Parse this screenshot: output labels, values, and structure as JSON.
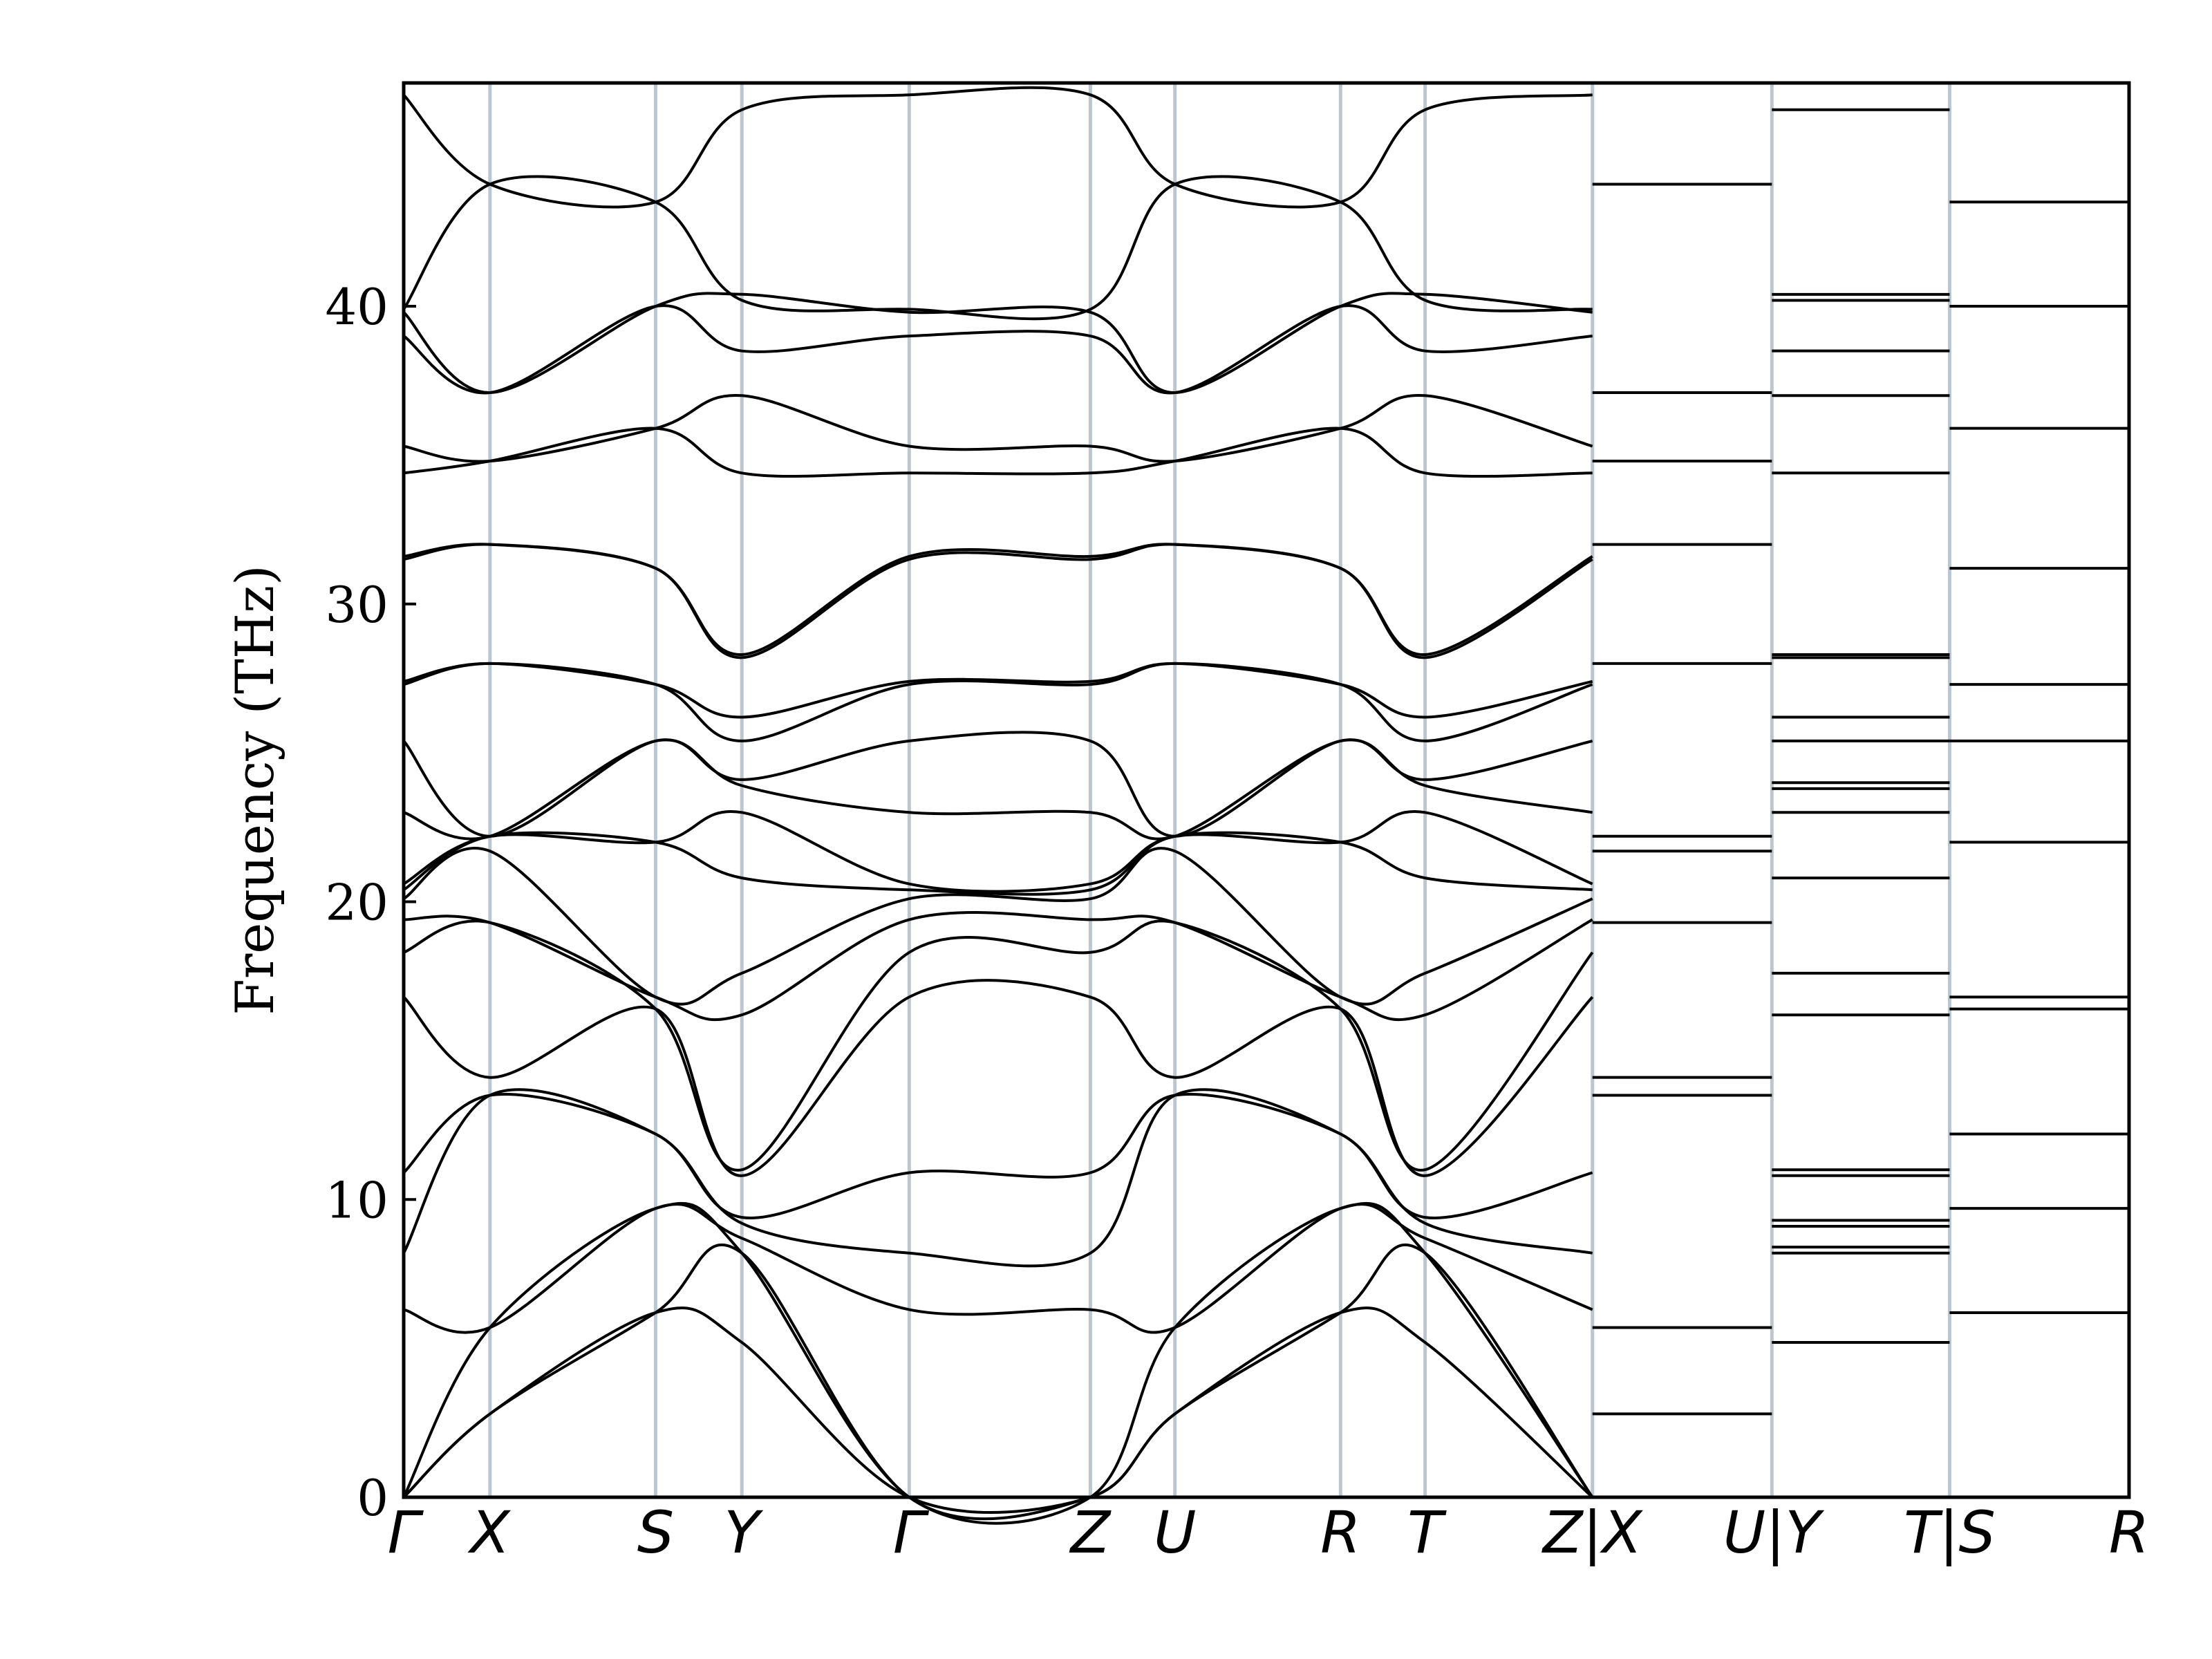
{
  "chart_data": {
    "type": "line",
    "title": "",
    "xlabel": "",
    "ylabel": "Frequency (THz)",
    "ylim": [
      0,
      47.5
    ],
    "yticks": [
      0,
      10,
      20,
      30,
      40
    ],
    "grid": false,
    "legend": "none",
    "colors": {
      "bands": "#000000",
      "kpath_lines": "#bcc6cf",
      "frame": "#000000",
      "background": "#ffffff"
    },
    "kpath": {
      "labels": [
        "Γ",
        "X",
        "S",
        "Y",
        "Γ",
        "Z",
        "U",
        "R",
        "T",
        "Z|X",
        "U|Y",
        "T|S",
        "R"
      ],
      "positions": [
        0,
        0.05,
        0.146,
        0.196,
        0.293,
        0.398,
        0.447,
        0.543,
        0.592,
        0.689,
        0.793,
        0.896,
        1.0
      ]
    },
    "segments": [
      {
        "path": "Γ-X-S-Y-Γ-Z-U-R-T-Z",
        "x_range": [
          0,
          0.689
        ],
        "bands": [
          {
            "name": "b1",
            "values": [
              0,
              2.8,
              6.2,
              5.2,
              0,
              0,
              2.8,
              6.2,
              5.2,
              0
            ]
          },
          {
            "name": "b2",
            "values": [
              0,
              2.8,
              6.2,
              8.2,
              0,
              0,
              2.8,
              6.2,
              8.2,
              0
            ]
          },
          {
            "name": "b3",
            "values": [
              0,
              5.7,
              9.7,
              8.2,
              0,
              0,
              5.7,
              9.7,
              8.2,
              0
            ]
          },
          {
            "name": "b4",
            "values": [
              6.3,
              5.7,
              9.7,
              8.7,
              6.3,
              6.3,
              5.7,
              9.7,
              8.7,
              6.3
            ]
          },
          {
            "name": "b5",
            "values": [
              8.2,
              13.5,
              12.2,
              9.2,
              8.2,
              8.2,
              13.5,
              12.2,
              9.2,
              8.2
            ]
          },
          {
            "name": "b6",
            "values": [
              10.9,
              13.5,
              12.2,
              9.4,
              10.9,
              10.9,
              13.5,
              12.2,
              9.4,
              10.9
            ]
          },
          {
            "name": "b7",
            "values": [
              16.8,
              14.1,
              16.4,
              10.8,
              16.8,
              16.8,
              14.1,
              16.4,
              10.8,
              16.8
            ]
          },
          {
            "name": "b8",
            "values": [
              18.3,
              19.3,
              16.4,
              11.0,
              18.3,
              18.3,
              19.3,
              16.4,
              11.0,
              18.3
            ]
          },
          {
            "name": "b9",
            "values": [
              19.4,
              19.3,
              16.8,
              16.2,
              19.4,
              19.4,
              19.3,
              16.8,
              16.2,
              19.4
            ]
          },
          {
            "name": "b10",
            "values": [
              20.1,
              21.7,
              16.8,
              17.6,
              20.1,
              20.1,
              21.7,
              16.8,
              17.6,
              20.1
            ]
          },
          {
            "name": "b11",
            "values": [
              20.4,
              22.2,
              22.0,
              20.8,
              20.4,
              20.4,
              22.2,
              22.0,
              20.8,
              20.4
            ]
          },
          {
            "name": "b12",
            "values": [
              20.6,
              22.2,
              22.0,
              23.0,
              20.6,
              20.6,
              22.2,
              22.0,
              23.0,
              20.6
            ]
          },
          {
            "name": "b13",
            "values": [
              23.0,
              22.2,
              25.4,
              23.9,
              23.0,
              23.0,
              22.2,
              25.4,
              23.9,
              23.0
            ]
          },
          {
            "name": "b14",
            "values": [
              25.4,
              22.2,
              25.4,
              24.1,
              25.4,
              25.4,
              22.2,
              25.4,
              24.1,
              25.4
            ]
          },
          {
            "name": "b15",
            "values": [
              27.3,
              28.0,
              27.3,
              25.4,
              27.3,
              27.3,
              28.0,
              27.3,
              25.4,
              27.3
            ]
          },
          {
            "name": "b16",
            "values": [
              27.4,
              28.0,
              27.3,
              26.2,
              27.4,
              27.4,
              28.0,
              27.3,
              26.2,
              27.4
            ]
          },
          {
            "name": "b17",
            "values": [
              31.5,
              32.0,
              31.2,
              28.2,
              31.5,
              31.5,
              32.0,
              31.2,
              28.2,
              31.5
            ]
          },
          {
            "name": "b18",
            "values": [
              31.6,
              32.0,
              31.2,
              28.3,
              31.6,
              31.6,
              32.0,
              31.2,
              28.3,
              31.6
            ]
          },
          {
            "name": "b19",
            "values": [
              34.4,
              34.8,
              35.9,
              34.4,
              34.4,
              34.4,
              34.8,
              35.9,
              34.4,
              34.4
            ]
          },
          {
            "name": "b20",
            "values": [
              35.3,
              34.8,
              35.9,
              37.0,
              35.3,
              35.3,
              34.8,
              35.9,
              37.0,
              35.3
            ]
          },
          {
            "name": "b21",
            "values": [
              39.0,
              37.1,
              40.0,
              38.5,
              39.0,
              39.0,
              37.1,
              40.0,
              38.5,
              39.0
            ]
          },
          {
            "name": "b22",
            "values": [
              39.8,
              37.1,
              40.0,
              40.4,
              39.8,
              39.8,
              37.1,
              40.0,
              40.4,
              39.8
            ]
          },
          {
            "name": "b23",
            "values": [
              39.9,
              44.1,
              43.5,
              40.2,
              39.9,
              39.9,
              44.1,
              43.5,
              40.2,
              39.9
            ]
          },
          {
            "name": "b24",
            "values": [
              47.1,
              44.1,
              43.5,
              46.6,
              47.1,
              47.1,
              44.1,
              43.5,
              46.6,
              47.1
            ]
          }
        ]
      },
      {
        "path": "X-U",
        "x_range": [
          0.689,
          0.793
        ],
        "levels": [
          2.8,
          5.7,
          13.5,
          14.1,
          19.3,
          21.7,
          22.2,
          28.0,
          32.0,
          34.8,
          37.1,
          44.1
        ]
      },
      {
        "path": "Y-T",
        "x_range": [
          0.793,
          0.896
        ],
        "levels": [
          5.2,
          8.2,
          8.4,
          9.1,
          9.3,
          10.8,
          11.0,
          16.2,
          17.6,
          20.8,
          23.0,
          23.8,
          24.0,
          25.4,
          26.2,
          28.2,
          28.3,
          34.4,
          37.0,
          38.5,
          40.2,
          40.4,
          46.6
        ]
      },
      {
        "path": "S-R",
        "x_range": [
          0.896,
          1.0
        ],
        "levels": [
          6.2,
          9.7,
          12.2,
          16.4,
          16.8,
          22.0,
          25.4,
          27.3,
          31.2,
          35.9,
          40.0,
          43.5
        ]
      }
    ]
  }
}
